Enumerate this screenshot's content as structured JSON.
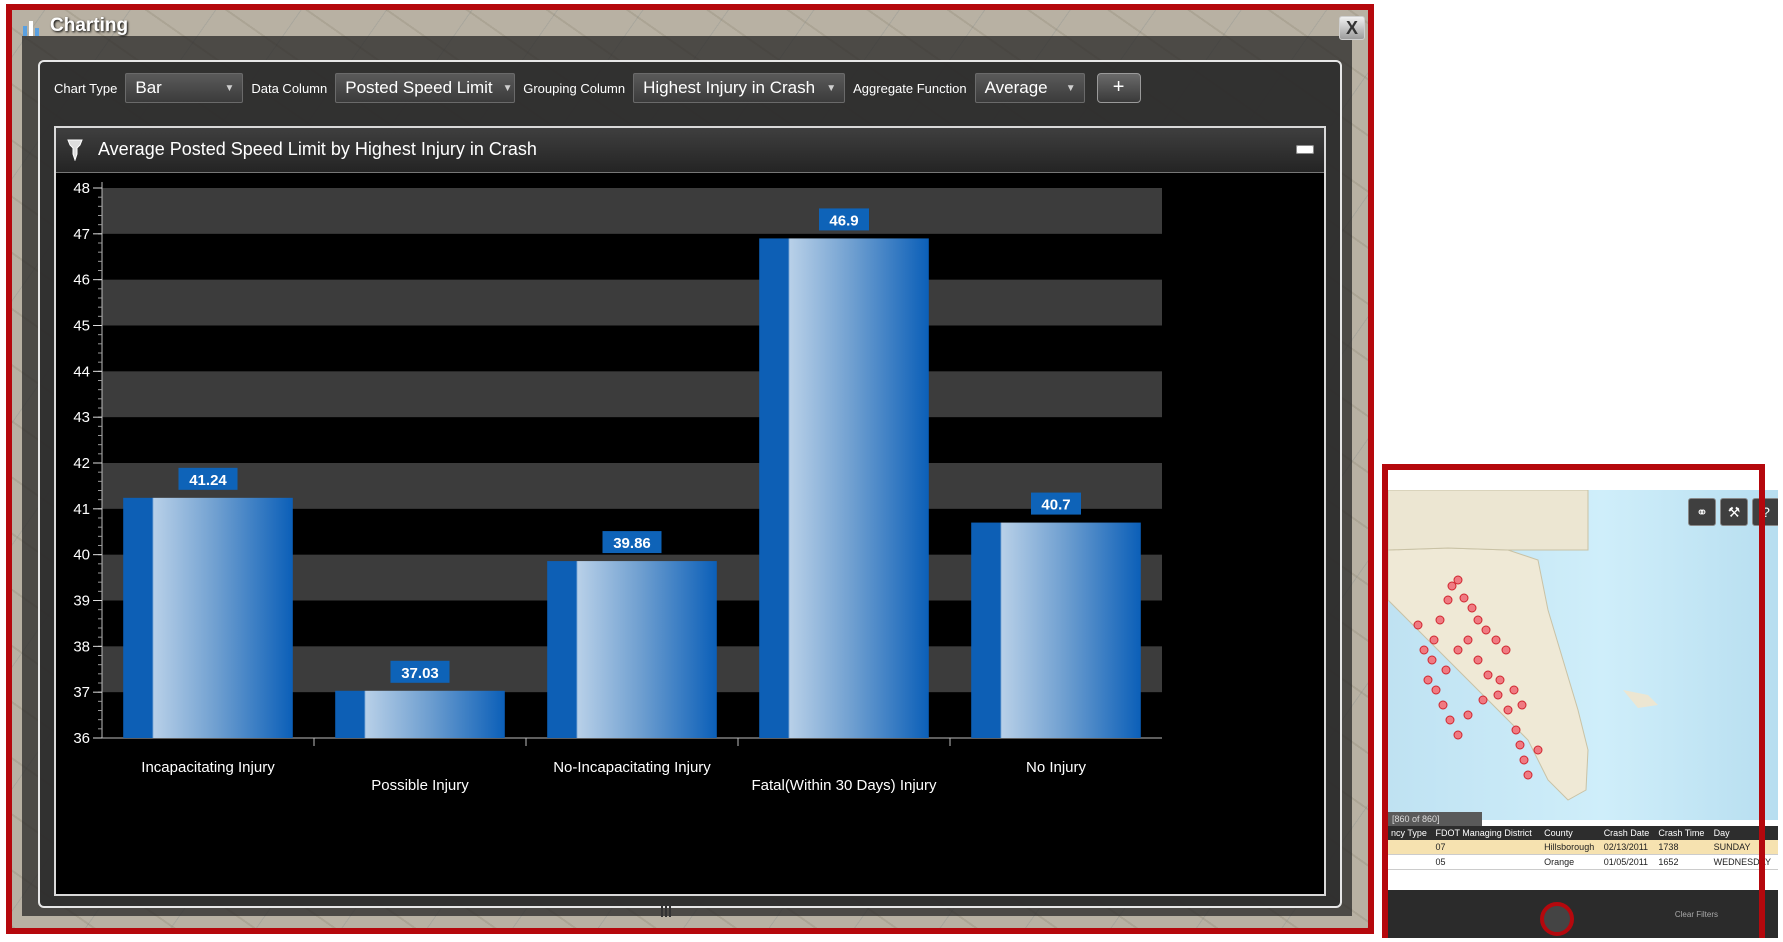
{
  "window": {
    "title": "Charting",
    "close_label": "X"
  },
  "toolbar": {
    "chart_type_label": "Chart Type",
    "chart_type_value": "Bar",
    "data_column_label": "Data Column",
    "data_column_value": "Posted Speed Limit",
    "grouping_column_label": "Grouping Column",
    "grouping_column_value": "Highest Injury in Crash",
    "aggregate_function_label": "Aggregate Function",
    "aggregate_function_value": "Average",
    "add_label": "+"
  },
  "chart_panel": {
    "title": "Average Posted Speed Limit by Highest Injury in Crash"
  },
  "chart_data": {
    "type": "bar",
    "title": "Average Posted Speed Limit by Highest Injury in Crash",
    "xlabel": "",
    "ylabel": "",
    "categories": [
      "Incapacitating Injury",
      "Possible Injury",
      "No-Incapacitating Injury",
      "Fatal(Within 30 Days) Injury",
      "No Injury"
    ],
    "values": [
      41.24,
      37.03,
      39.86,
      46.9,
      40.7
    ],
    "value_labels": [
      "41.24",
      "37.03",
      "39.86",
      "46.9",
      "40.7"
    ],
    "ylim": [
      36,
      48
    ],
    "yticks": [
      "36",
      "37",
      "38",
      "39",
      "40",
      "41",
      "42",
      "43",
      "44",
      "45",
      "46",
      "47",
      "48"
    ],
    "grid": "alternating horizontal bands",
    "legend": "none",
    "colors": {
      "bar_edge": "#0d5fb5",
      "bar_light": "#b6cfe6",
      "label_bg": "#0e63b8",
      "band": "#3c3c3c",
      "background": "#000000"
    }
  },
  "preview": {
    "tab_label": "[860 of 860]",
    "columns": [
      "ncy Type",
      "FDOT Managing District",
      "County",
      "Crash Date",
      "Crash Time",
      "Day"
    ],
    "rows": [
      [
        "",
        "07",
        "Hillsborough",
        "02/13/2011",
        "1738",
        "SUNDAY"
      ],
      [
        "",
        "05",
        "Orange",
        "01/05/2011",
        "1652",
        "WEDNESDAY"
      ]
    ],
    "clear_filters": "Clear Filters"
  },
  "colors": {
    "highlight_border": "#b5080d",
    "panel_dark": "#2a2a2a"
  }
}
